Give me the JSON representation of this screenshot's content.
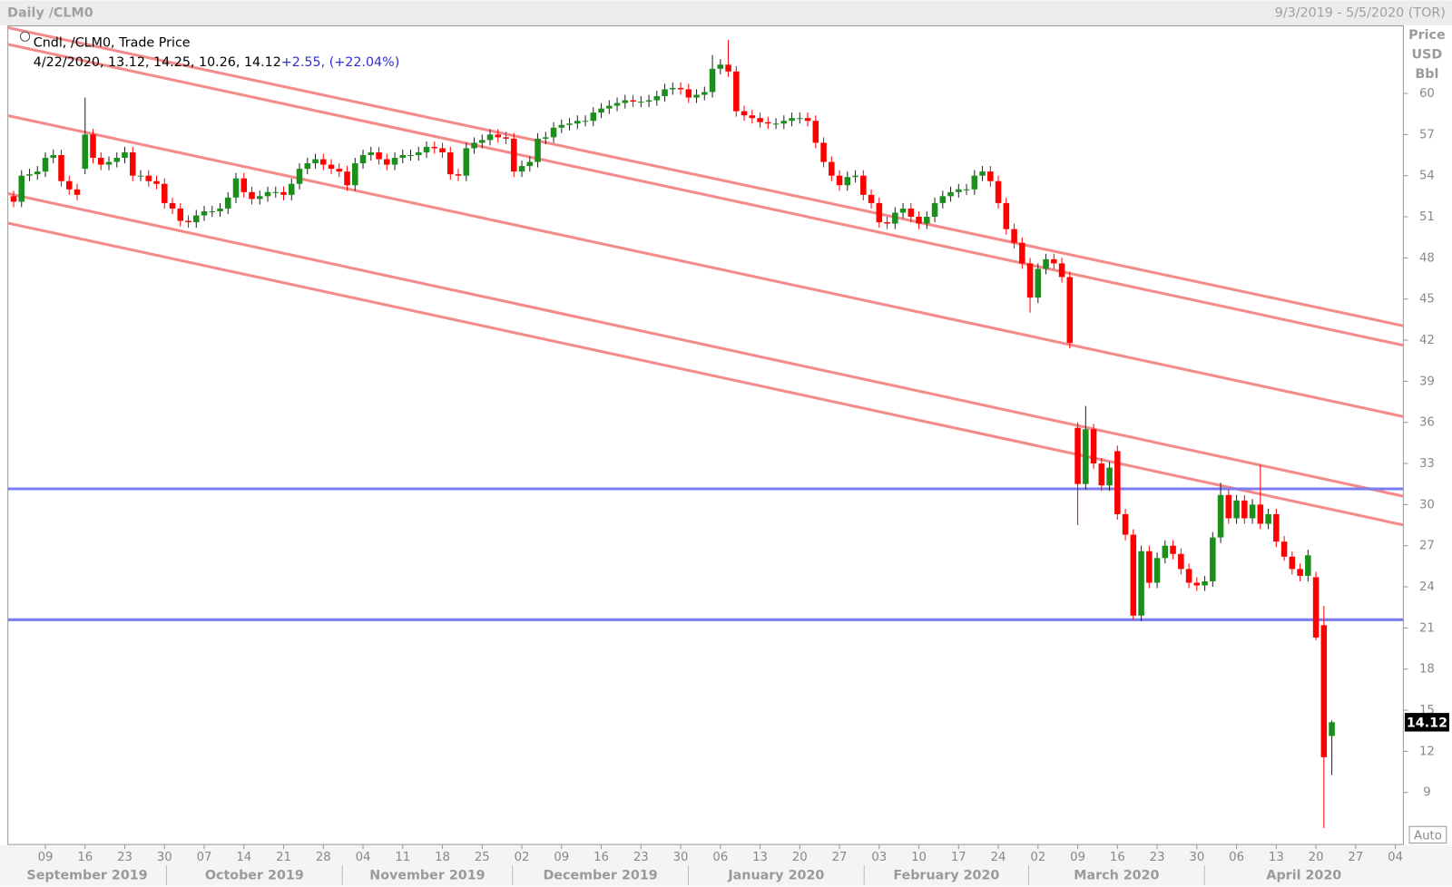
{
  "header": {
    "left": "Daily /CLM0",
    "right": "9/3/2019 - 5/5/2020 (TOR)"
  },
  "chart_data": {
    "type": "candlestick",
    "legend": {
      "title": "Cndl, /CLM0, Trade Price",
      "values": "4/22/2020, 13.12, 14.25, 10.26, 14.12",
      "change": "+2.55,",
      "change_pct": "(+22.04%)"
    },
    "y_axis_label": [
      "Price",
      "USD",
      "Bbl"
    ],
    "y_axis_mode": "Auto",
    "up_color": "#1b8f1b",
    "down_color": "#ff0000",
    "ylim": [
      5.2,
      64.93
    ],
    "yticks": [
      9,
      12,
      15,
      18,
      21,
      24,
      27,
      30,
      33,
      36,
      39,
      42,
      45,
      48,
      51,
      54,
      57,
      60
    ],
    "months": [
      {
        "label": "September 2019",
        "weeks": [
          "09",
          "16",
          "23",
          "30"
        ]
      },
      {
        "label": "October 2019",
        "weeks": [
          "07",
          "14",
          "21",
          "28"
        ]
      },
      {
        "label": "November 2019",
        "weeks": [
          "04",
          "11",
          "18",
          "25"
        ]
      },
      {
        "label": "December 2019",
        "weeks": [
          "02",
          "09",
          "16",
          "23",
          "30"
        ]
      },
      {
        "label": "January 2020",
        "weeks": [
          "06",
          "13",
          "20",
          "27"
        ]
      },
      {
        "label": "February 2020",
        "weeks": [
          "03",
          "10",
          "17",
          "24"
        ]
      },
      {
        "label": "March 2020",
        "weeks": [
          "02",
          "09",
          "16",
          "23",
          "30"
        ]
      },
      {
        "label": "April 2020",
        "weeks": [
          "06",
          "13",
          "20",
          "27",
          "04"
        ]
      }
    ],
    "hlines": {
      "color": "#7b7bf2",
      "values": [
        31.15,
        21.6
      ]
    },
    "trendlines": {
      "color": "#f48a8a",
      "lines": [
        {
          "start": 64.8,
          "end": 43.04
        },
        {
          "start": 63.58,
          "end": 41.62
        },
        {
          "start": 58.38,
          "end": 36.42
        },
        {
          "start": 52.7,
          "end": 30.61
        },
        {
          "start": 50.54,
          "end": 28.51
        }
      ]
    },
    "open": [
      52.5,
      52.1,
      54,
      54.1,
      54.3,
      55.3,
      55.5,
      53.6,
      53,
      54.5,
      57,
      55.3,
      54.8,
      55,
      55.3,
      55.7,
      54,
      54,
      53.6,
      53.4,
      52,
      51.6,
      50.7,
      50.6,
      51.1,
      51.4,
      51.4,
      51.6,
      52.4,
      53.8,
      52.8,
      52.3,
      52.5,
      52.8,
      52.8,
      52.6,
      53.4,
      54.5,
      54.9,
      55.2,
      54.8,
      54.5,
      54.3,
      53.3,
      54.9,
      55.5,
      55.7,
      55.2,
      54.8,
      55.3,
      55.5,
      55.5,
      55.7,
      56.1,
      56,
      55.7,
      54.1,
      54,
      56,
      56.4,
      56.6,
      57,
      56.8,
      56.7,
      54.3,
      54.7,
      55,
      56.7,
      56.8,
      57.5,
      57.7,
      57.8,
      58,
      58,
      58.6,
      58.9,
      59.1,
      59.3,
      59.5,
      59.4,
      59.4,
      59.5,
      59.8,
      60.3,
      60.4,
      60.3,
      59.7,
      59.9,
      60.1,
      61.8,
      62.1,
      61.6,
      58.7,
      58.4,
      58.2,
      57.9,
      57.8,
      57.8,
      58,
      58.2,
      58.2,
      58,
      56.4,
      55,
      54,
      53.3,
      53.9,
      54,
      52.6,
      52,
      50.6,
      50.5,
      51.3,
      51.6,
      51,
      50.5,
      51,
      52,
      52.5,
      52.8,
      53,
      53,
      54,
      54.3,
      53.6,
      52,
      50.1,
      49.1,
      47.6,
      45.1,
      47.2,
      47.9,
      47.6,
      46.6,
      35.6,
      31.5,
      35.5,
      33,
      31.4,
      33.9,
      29.3,
      27.8,
      21.9,
      26.6,
      24.3,
      26.1,
      27,
      26.4,
      25.3,
      24.3,
      24.1,
      24.4,
      27.6,
      30.7,
      29,
      30.3,
      29,
      30,
      28.6,
      29.3,
      27.3,
      26.2,
      25.3,
      24.8,
      24.7,
      21.2,
      13.12
    ],
    "high": [
      52.9,
      54.4,
      54.5,
      54.7,
      55.7,
      55.9,
      55.9,
      54,
      53.4,
      59.7,
      57.4,
      55.7,
      55.4,
      55.7,
      56.1,
      56.1,
      54.4,
      54.4,
      54,
      53.8,
      52.4,
      52,
      51.1,
      51.5,
      51.8,
      51.8,
      52,
      52.8,
      54.2,
      54.2,
      53.2,
      52.9,
      53.2,
      53.2,
      53.2,
      53.8,
      54.9,
      55.3,
      55.6,
      55.6,
      55.2,
      54.9,
      54.7,
      55.3,
      55.9,
      56.1,
      56.1,
      55.6,
      55.7,
      55.9,
      55.9,
      56.1,
      56.5,
      56.5,
      56.4,
      56.1,
      54.5,
      56.4,
      56.8,
      57,
      57.4,
      57.4,
      57.2,
      57.1,
      55.1,
      55.4,
      57.1,
      57.2,
      57.9,
      58.1,
      58.2,
      58.4,
      58.4,
      59,
      59.3,
      59.5,
      59.7,
      59.9,
      59.9,
      59.8,
      59.9,
      60.2,
      60.7,
      60.8,
      60.8,
      60.7,
      60.3,
      60.5,
      62.8,
      62.5,
      63.9,
      62,
      59.1,
      58.8,
      58.6,
      58.3,
      58.2,
      58.4,
      58.6,
      58.6,
      58.6,
      58.4,
      56.8,
      55.4,
      54.4,
      54.3,
      54.4,
      54.4,
      53,
      52.4,
      51,
      51.7,
      52,
      52,
      51.4,
      51.4,
      52.4,
      52.9,
      53.2,
      53.4,
      53.4,
      54.4,
      54.7,
      54.7,
      54,
      52.4,
      50.5,
      49.5,
      48,
      47.6,
      48.3,
      48.3,
      48,
      47,
      36,
      37.2,
      35.9,
      33.4,
      33.1,
      34.3,
      29.7,
      28.2,
      27,
      27,
      26.5,
      27.4,
      27.4,
      26.8,
      25.7,
      24.7,
      24.8,
      28,
      31.6,
      31.1,
      30.7,
      30.7,
      30.4,
      32.9,
      29.7,
      29.7,
      27.7,
      26.6,
      25.7,
      26.7,
      25.1,
      22.6,
      14.25
    ],
    "low": [
      51.7,
      51.7,
      53.6,
      53.7,
      53.9,
      54.9,
      53.2,
      52.6,
      52.2,
      54.1,
      54.9,
      54.4,
      54.4,
      54.6,
      54.9,
      53.6,
      53.6,
      53.2,
      53,
      51.6,
      51.2,
      50.3,
      50.2,
      50.2,
      50.7,
      51,
      51,
      51.2,
      52,
      52.4,
      51.9,
      51.9,
      52.1,
      52.4,
      52.2,
      52.2,
      53,
      54.1,
      54.5,
      54.4,
      54.1,
      53.9,
      52.9,
      52.9,
      54.5,
      55.1,
      54.8,
      54.4,
      54.4,
      54.9,
      55.1,
      55.1,
      55.3,
      55.6,
      55.3,
      53.7,
      53.6,
      53.6,
      55.6,
      56,
      56.2,
      56.4,
      56.3,
      53.9,
      53.9,
      54.3,
      54.6,
      56.3,
      56.4,
      57.1,
      57.3,
      57.4,
      57.6,
      57.6,
      58.2,
      58.5,
      58.7,
      58.9,
      59,
      59,
      59,
      59.1,
      59.4,
      59.9,
      59.9,
      59.3,
      59.3,
      59.5,
      59.7,
      61.4,
      61.2,
      58.3,
      58,
      57.8,
      57.5,
      57.4,
      57.4,
      57.4,
      57.6,
      57.8,
      57.6,
      56,
      54.6,
      53.6,
      52.9,
      52.9,
      53.5,
      52.2,
      51.6,
      50.2,
      50.1,
      50.1,
      50.9,
      50.6,
      50.1,
      50.1,
      50.6,
      51.6,
      52.1,
      52.4,
      52.6,
      52.6,
      53.6,
      53.2,
      51.6,
      49.7,
      48.7,
      47.2,
      44,
      44.7,
      46.8,
      47.2,
      46.2,
      41.4,
      28.5,
      31.1,
      32.6,
      31,
      31,
      28.9,
      27.4,
      21.6,
      21.5,
      23.9,
      23.9,
      25.7,
      26,
      24.9,
      23.9,
      23.7,
      23.7,
      24,
      27.2,
      28.6,
      28.6,
      28.6,
      28.6,
      28.2,
      28.2,
      26.9,
      25.9,
      24.9,
      24.4,
      24.4,
      20.1,
      6.4,
      10.26
    ],
    "close": [
      52.1,
      54,
      54.1,
      54.3,
      55.3,
      55.5,
      53.6,
      53,
      52.6,
      57,
      55.3,
      54.8,
      55,
      55.3,
      55.7,
      54,
      54,
      53.6,
      53.4,
      52,
      51.6,
      50.7,
      50.6,
      51.1,
      51.4,
      51.4,
      51.6,
      52.4,
      53.8,
      52.8,
      52.3,
      52.5,
      52.8,
      52.8,
      52.6,
      53.4,
      54.5,
      54.9,
      55.2,
      54.8,
      54.5,
      54.3,
      53.3,
      54.9,
      55.5,
      55.7,
      55.2,
      54.8,
      55.3,
      55.5,
      55.5,
      55.7,
      56.1,
      56,
      55.7,
      54.1,
      54,
      56,
      56.4,
      56.6,
      57,
      56.8,
      56.7,
      54.3,
      54.7,
      55,
      56.7,
      56.8,
      57.5,
      57.7,
      57.8,
      58,
      58,
      58.6,
      58.9,
      59.1,
      59.3,
      59.5,
      59.4,
      59.4,
      59.5,
      59.8,
      60.3,
      60.4,
      60.3,
      59.7,
      59.9,
      60.1,
      61.8,
      62.1,
      61.6,
      58.7,
      58.4,
      58.2,
      57.9,
      57.8,
      57.8,
      58,
      58.2,
      58.2,
      58,
      56.4,
      55,
      54,
      53.3,
      53.9,
      54,
      52.6,
      52,
      50.6,
      50.5,
      51.3,
      51.6,
      51,
      50.5,
      51,
      52,
      52.5,
      52.8,
      53,
      53,
      54,
      54.3,
      53.6,
      52,
      50.1,
      49.1,
      47.6,
      45.1,
      47.2,
      47.9,
      47.6,
      46.6,
      41.8,
      31.5,
      35.5,
      33,
      31.4,
      32.7,
      29.3,
      27.8,
      21.9,
      26.6,
      24.3,
      26.1,
      27,
      26.4,
      25.3,
      24.3,
      24.1,
      24.4,
      27.6,
      30.7,
      29,
      30.3,
      29,
      30,
      28.6,
      29.3,
      27.3,
      26.2,
      25.3,
      24.8,
      26.3,
      20.3,
      11.57,
      14.12
    ]
  }
}
